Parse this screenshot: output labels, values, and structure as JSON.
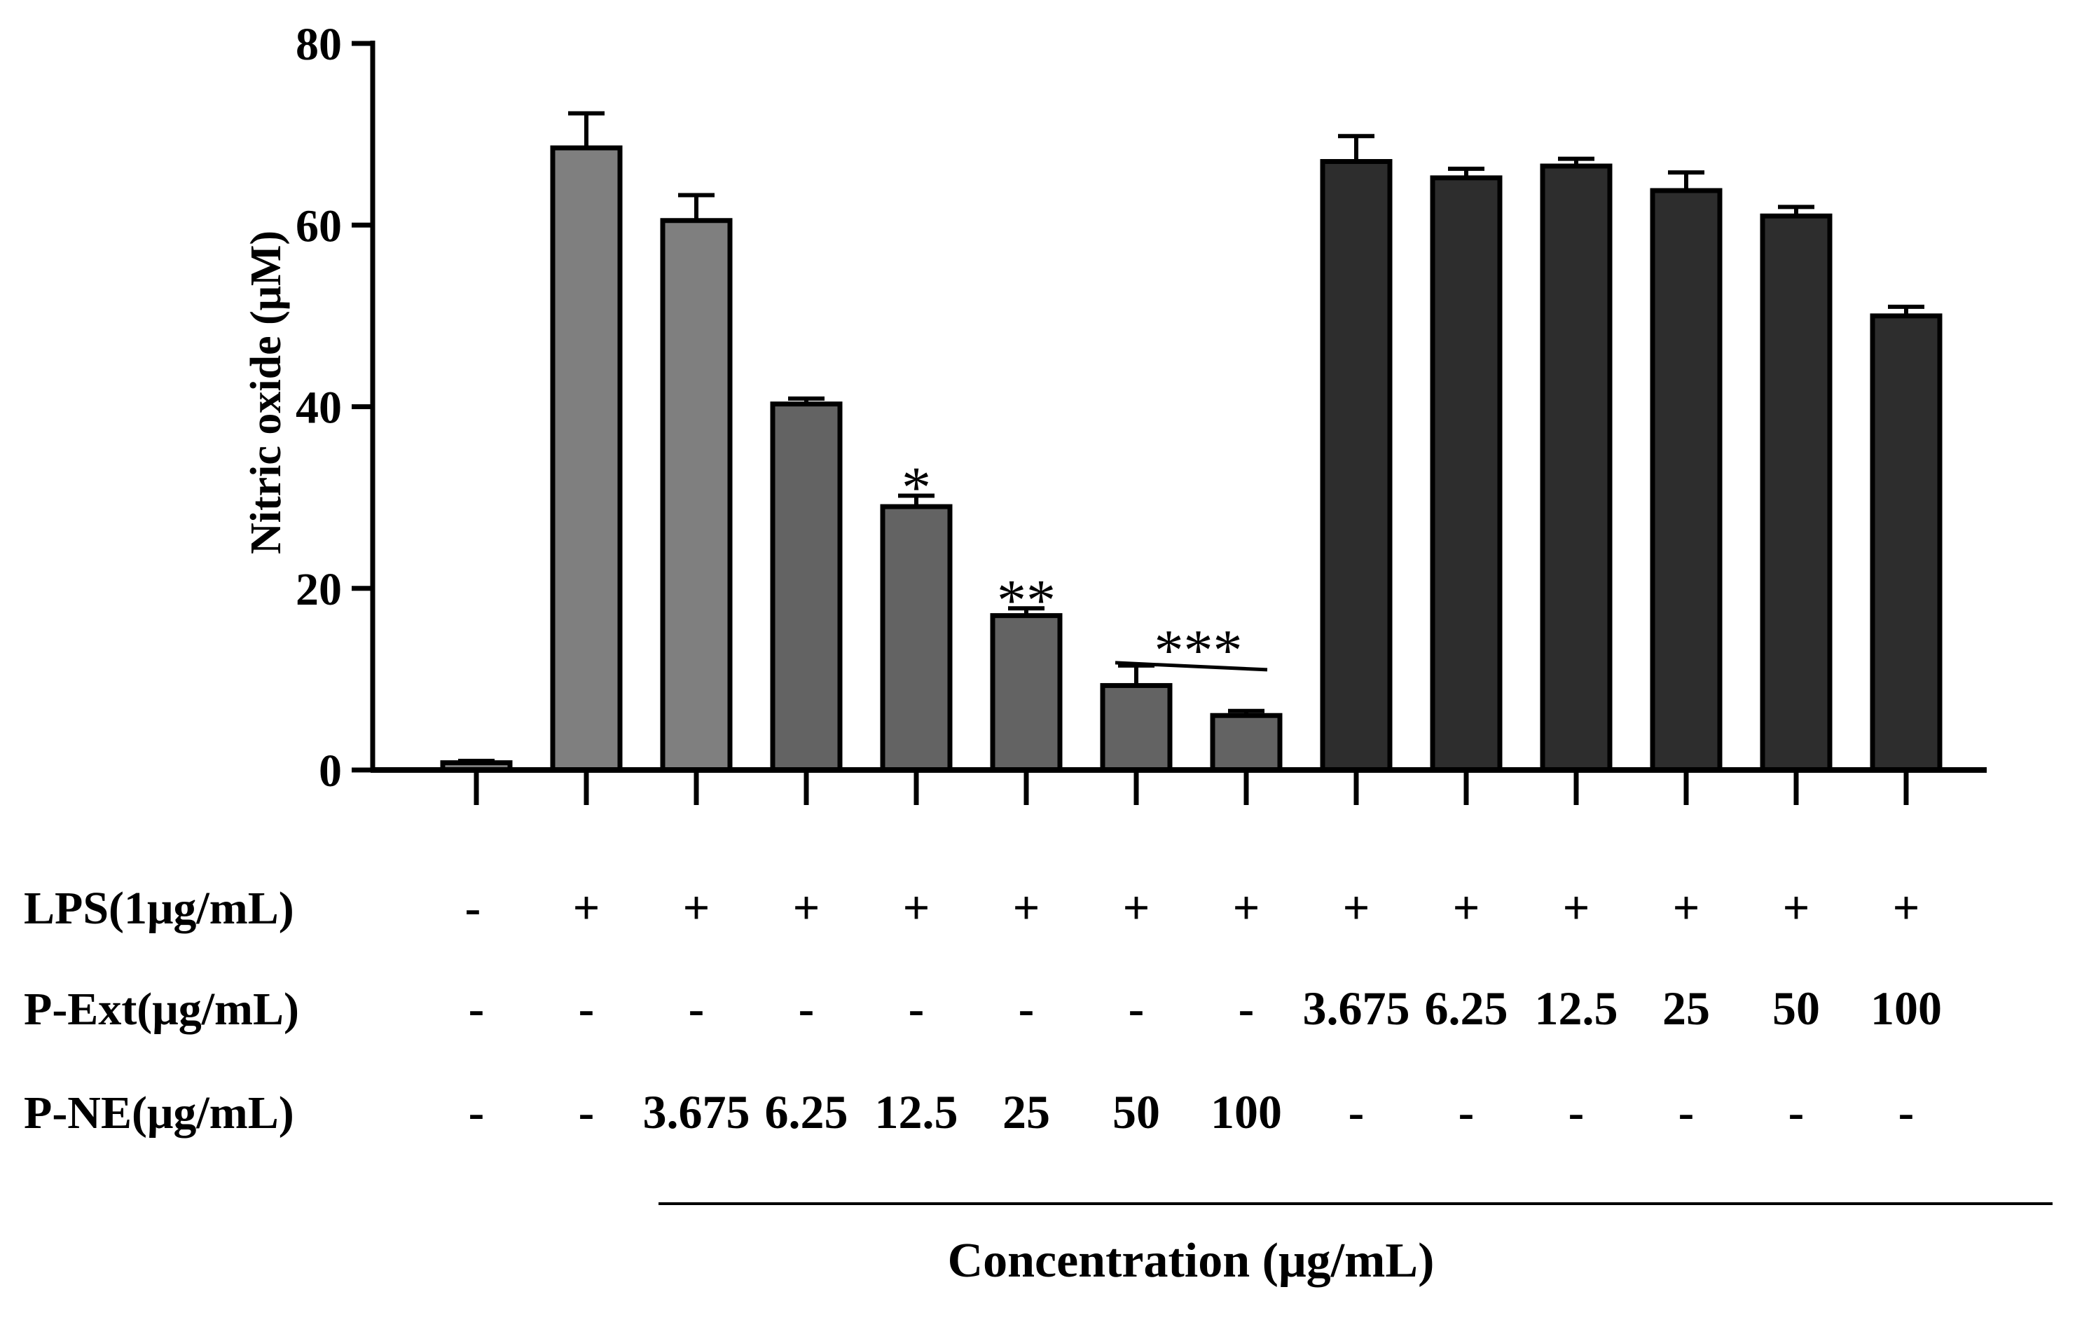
{
  "chart_data": {
    "type": "bar",
    "title": "",
    "ylabel": "Nitric oxide (μM)",
    "xlabel": "Concentration (μg/mL)",
    "ylim": [
      0,
      80
    ],
    "yticks": [
      "0",
      "20",
      "40",
      "60",
      "80"
    ],
    "colors": {
      "control": "#7f7f7f",
      "pne": "#636363",
      "pext": "#2d2d2d",
      "edge": "#000000"
    },
    "bars": [
      {
        "group": "control",
        "value": 0.8,
        "error": 0.2
      },
      {
        "group": "control",
        "value": 68.5,
        "error": 3.8
      },
      {
        "group": "control",
        "value": 60.5,
        "error": 2.8
      },
      {
        "group": "pne",
        "value": 40.3,
        "error": 0.6
      },
      {
        "group": "pne",
        "value": 29.0,
        "error": 1.2,
        "sig": "*"
      },
      {
        "group": "pne",
        "value": 17.0,
        "error": 0.8,
        "sig": "**"
      },
      {
        "group": "pne",
        "value": 9.3,
        "error": 2.2
      },
      {
        "group": "pne",
        "value": 6.0,
        "error": 0.5
      },
      {
        "group": "pext",
        "value": 67.0,
        "error": 2.8
      },
      {
        "group": "pext",
        "value": 65.2,
        "error": 1.0
      },
      {
        "group": "pext",
        "value": 66.5,
        "error": 0.8
      },
      {
        "group": "pext",
        "value": 63.8,
        "error": 2.0
      },
      {
        "group": "pext",
        "value": 61.0,
        "error": 1.0
      },
      {
        "group": "pext",
        "value": 50.0,
        "error": 1.0
      }
    ],
    "bracket_sig": "***",
    "table": [
      {
        "label": "LPS(1μg/mL)",
        "cells": [
          "-",
          "+",
          "+",
          "+",
          "+",
          "+",
          "+",
          "+",
          "+",
          "+",
          "+",
          "+",
          "+",
          "+"
        ]
      },
      {
        "label": "P-Ext(μg/mL)",
        "cells": [
          "-",
          "-",
          "-",
          "-",
          "-",
          "-",
          "-",
          "-",
          "3.675",
          "6.25",
          "12.5",
          "25",
          "50",
          "100"
        ]
      },
      {
        "label": "P-NE(μg/mL)",
        "cells": [
          "-",
          "-",
          "3.675",
          "6.25",
          "12.5",
          "25",
          "50",
          "100",
          "-",
          "-",
          "-",
          "-",
          "-",
          "-"
        ]
      }
    ]
  }
}
